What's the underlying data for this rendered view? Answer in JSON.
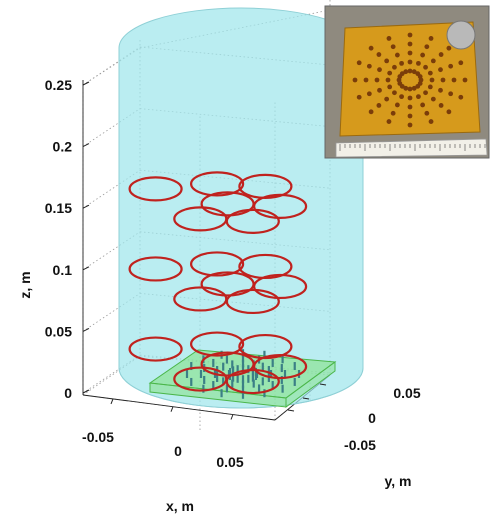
{
  "chart_data": {
    "type": "scatter",
    "projection": "3d",
    "xlabel": "x, m",
    "ylabel": "y, m",
    "zlabel": "z, m",
    "x_ticks": [
      "-0.05",
      "0",
      "0.05"
    ],
    "y_ticks": [
      "0.05",
      "0",
      "-0.05"
    ],
    "z_ticks": [
      "0.25",
      "0.2",
      "0.15",
      "0.1",
      "0.05",
      "0"
    ],
    "zlim": [
      -0.01,
      0.28
    ],
    "grid": true,
    "colors": {
      "cylinder": "#9fe6ec",
      "coil": "#c0221e",
      "board": "#7fe07a",
      "posts": "#3b7f86",
      "grid": "#9a9a9a",
      "inset_board": "#d69a1c"
    },
    "coil_layers": [
      {
        "z": 0.03,
        "coil_count": 7
      },
      {
        "z": 0.095,
        "coil_count": 7
      },
      {
        "z": 0.16,
        "coil_count": 7
      }
    ],
    "inset_photo": "photograph of amber circuit board with coin and ruler"
  }
}
